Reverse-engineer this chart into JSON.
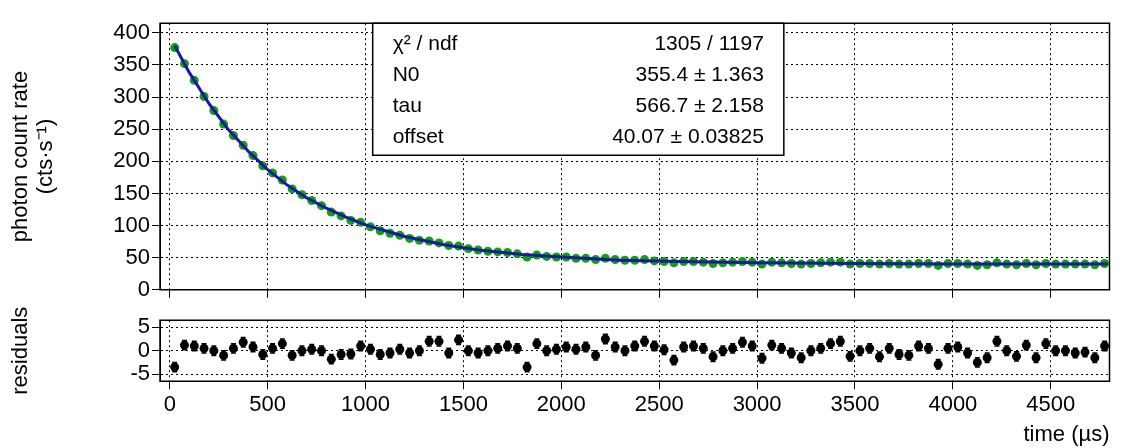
{
  "chart_data": [
    {
      "type": "scatter",
      "ylabel": "photon count rate\n(cts·s⁻¹)",
      "xlim": [
        -50,
        4800
      ],
      "xticks": [
        0,
        500,
        1000,
        1500,
        2000,
        2500,
        3000,
        3500,
        4000,
        4500
      ],
      "ylim": [
        0,
        415
      ],
      "yticks": [
        0,
        50,
        100,
        150,
        200,
        250,
        300,
        350,
        400
      ],
      "grid": true,
      "legend": false,
      "tick_labels": "y",
      "annotations": [
        "χ² / ndf",
        "1305 / 1197",
        "N0",
        "355.4 ± 1.363",
        "tau",
        "566.7 ± 2.158",
        "offset",
        "40.07 ± 0.03825"
      ],
      "series": [
        {
          "marker": "circle",
          "color": "#11a011",
          "x": [
            25,
            75,
            125,
            175,
            225,
            275,
            325,
            375,
            425,
            475,
            525,
            575,
            625,
            675,
            725,
            775,
            825,
            875,
            925,
            975,
            1025,
            1075,
            1125,
            1175,
            1225,
            1275,
            1325,
            1375,
            1425,
            1475,
            1525,
            1575,
            1625,
            1675,
            1725,
            1775,
            1825,
            1875,
            1925,
            1975,
            2025,
            2075,
            2125,
            2175,
            2225,
            2275,
            2325,
            2375,
            2425,
            2475,
            2525,
            2575,
            2625,
            2675,
            2725,
            2775,
            2825,
            2875,
            2925,
            2975,
            3025,
            3075,
            3125,
            3175,
            3225,
            3275,
            3325,
            3375,
            3425,
            3475,
            3525,
            3575,
            3625,
            3675,
            3725,
            3775,
            3825,
            3875,
            3925,
            3975,
            4025,
            4075,
            4125,
            4175,
            4225,
            4275,
            4325,
            4375,
            4425,
            4475,
            4525,
            4575,
            4625,
            4675,
            4725,
            4775
          ],
          "values": [
            377,
            352,
            326,
            301,
            279,
            258,
            240,
            225,
            209,
            193,
            182,
            171,
            157,
            148,
            139,
            131,
            121,
            115,
            108,
            105,
            98,
            92,
            88,
            85,
            80,
            77,
            76,
            73,
            69,
            68,
            64,
            62,
            60,
            59,
            58,
            56,
            51,
            54,
            52,
            51,
            51,
            49,
            49,
            47,
            49,
            47,
            46,
            46,
            47,
            45,
            44,
            42,
            44,
            44,
            43,
            41,
            42,
            43,
            44,
            43,
            40,
            43,
            42,
            41,
            40,
            41,
            42,
            43,
            43,
            40,
            41,
            41,
            40,
            41,
            40,
            40,
            41,
            41,
            38,
            41,
            41,
            40,
            38,
            39,
            42,
            40,
            39,
            41,
            39,
            41,
            40,
            40,
            40,
            40,
            39,
            41
          ]
        },
        {
          "type": "line",
          "marker": "none",
          "color": "#1a1a9e",
          "x": [
            25,
            100,
            200,
            300,
            400,
            500,
            600,
            700,
            800,
            900,
            1000,
            1200,
            1400,
            1600,
            1800,
            2000,
            2300,
            2600,
            3000,
            3500,
            4000,
            4500,
            4790
          ],
          "values": [
            380,
            338,
            290,
            249,
            216,
            187,
            163,
            143,
            127,
            113,
            101,
            83,
            70,
            61,
            55,
            51,
            46,
            44,
            42,
            41,
            40,
            40,
            40
          ]
        }
      ]
    },
    {
      "type": "scatter",
      "xlabel": "time (µs)",
      "ylabel": "residuals",
      "xlim": [
        -50,
        4800
      ],
      "xticks": [
        0,
        500,
        1000,
        1500,
        2000,
        2500,
        3000,
        3500,
        4000,
        4500
      ],
      "ylim": [
        -6.5,
        6.5
      ],
      "yticks": [
        -5,
        0,
        5
      ],
      "grid": true,
      "legend": false,
      "series": [
        {
          "marker": "circle",
          "color": "#000000",
          "x": [
            25,
            75,
            125,
            175,
            225,
            275,
            325,
            375,
            425,
            475,
            525,
            575,
            625,
            675,
            725,
            775,
            825,
            875,
            925,
            975,
            1025,
            1075,
            1125,
            1175,
            1225,
            1275,
            1325,
            1375,
            1425,
            1475,
            1525,
            1575,
            1625,
            1675,
            1725,
            1775,
            1825,
            1875,
            1925,
            1975,
            2025,
            2075,
            2125,
            2175,
            2225,
            2275,
            2325,
            2375,
            2425,
            2475,
            2525,
            2575,
            2625,
            2675,
            2725,
            2775,
            2825,
            2875,
            2925,
            2975,
            3025,
            3075,
            3125,
            3175,
            3225,
            3275,
            3325,
            3375,
            3425,
            3475,
            3525,
            3575,
            3625,
            3675,
            3725,
            3775,
            3825,
            3875,
            3925,
            3975,
            4025,
            4075,
            4125,
            4175,
            4225,
            4275,
            4325,
            4375,
            4425,
            4475,
            4525,
            4575,
            4625,
            4675,
            4725,
            4775
          ],
          "values": [
            -3.5,
            1.2,
            1.0,
            0.5,
            0.0,
            -1.0,
            0.5,
            1.8,
            0.8,
            -0.8,
            0.5,
            1.5,
            -1.0,
            0.0,
            0.3,
            0.0,
            -1.8,
            -0.8,
            -0.7,
            1.0,
            0.3,
            -0.8,
            -0.5,
            0.3,
            -0.5,
            0.0,
            2.0,
            2.0,
            -0.5,
            2.3,
            0.0,
            -0.5,
            0.0,
            0.5,
            1.0,
            0.5,
            -3.5,
            1.5,
            0.0,
            0.3,
            0.8,
            0.3,
            0.8,
            -1.0,
            2.5,
            0.8,
            0.0,
            1.0,
            2.0,
            1.0,
            0.2,
            -2.0,
            0.8,
            1.0,
            0.5,
            -1.3,
            0.0,
            0.5,
            1.8,
            1.0,
            -1.6,
            1.2,
            0.5,
            -0.5,
            -1.5,
            0.0,
            0.5,
            1.5,
            2.0,
            -1.2,
            0.0,
            0.5,
            -1.3,
            0.5,
            -0.8,
            -1.0,
            1.0,
            0.5,
            -2.9,
            0.5,
            0.8,
            -0.5,
            -2.5,
            -1.5,
            2.0,
            0.0,
            -1.2,
            1.2,
            -1.5,
            1.5,
            0.0,
            0.0,
            -0.5,
            -0.3,
            -1.5,
            1.0
          ],
          "errors": [
            1,
            1,
            1,
            1,
            1,
            1,
            1,
            1,
            1,
            1,
            1,
            1,
            1,
            1,
            1,
            1,
            1,
            1,
            1,
            1,
            1,
            1,
            1,
            1,
            1,
            1,
            1,
            1,
            1,
            1,
            1,
            1,
            1,
            1,
            1,
            1,
            1,
            1,
            1,
            1,
            1,
            1,
            1,
            1,
            1,
            1,
            1,
            1,
            1,
            1,
            1,
            1,
            1,
            1,
            1,
            1,
            1,
            1,
            1,
            1,
            1,
            1,
            1,
            1,
            1,
            1,
            1,
            1,
            1,
            1,
            1,
            1,
            1,
            1,
            1,
            1,
            1,
            1,
            1,
            1,
            1,
            1,
            1,
            1,
            1,
            1,
            1,
            1,
            1,
            1,
            1,
            1,
            1,
            1,
            1,
            1
          ]
        }
      ]
    }
  ]
}
